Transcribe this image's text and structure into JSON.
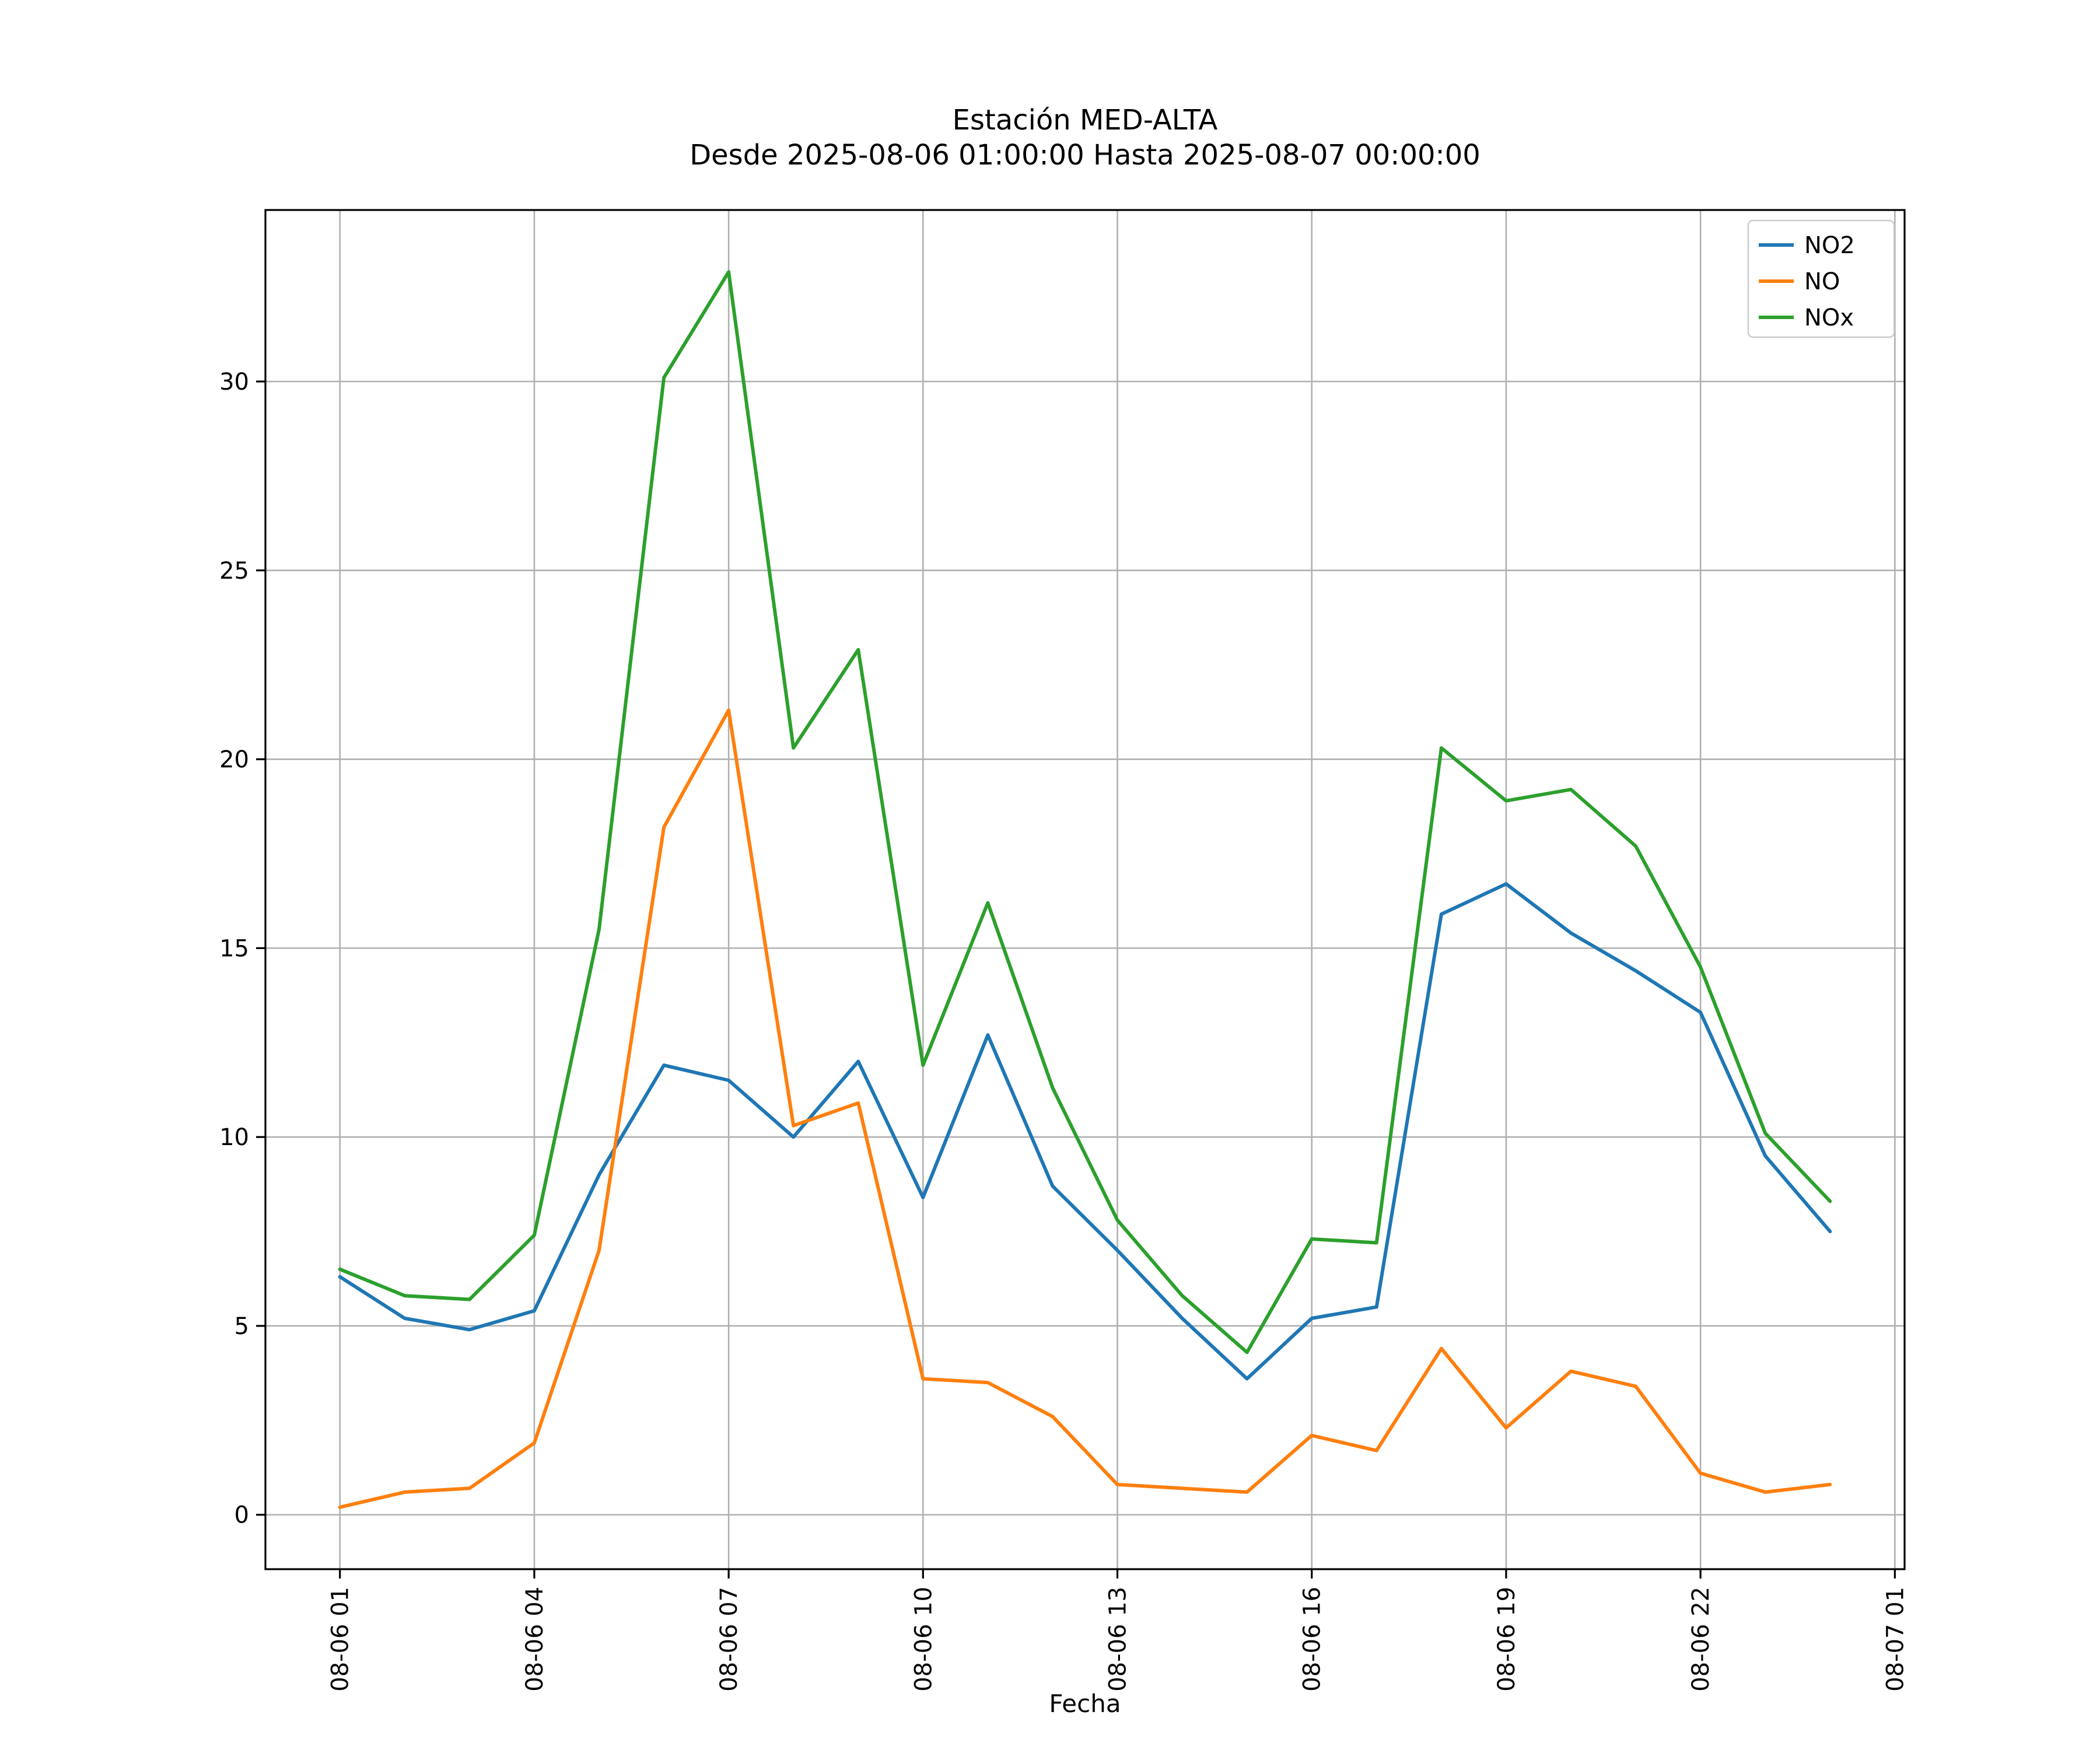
{
  "chart_data": {
    "type": "line",
    "title": "Estación MED-ALTA",
    "subtitle": "Desde 2025-08-06 01:00:00 Hasta 2025-08-07 00:00:00",
    "xlabel": "Fecha",
    "ylabel": "",
    "grid": true,
    "legend_position": "upper-right",
    "x": [
      1,
      2,
      3,
      4,
      5,
      6,
      7,
      8,
      9,
      10,
      11,
      12,
      13,
      14,
      15,
      16,
      17,
      18,
      19,
      20,
      21,
      22,
      23,
      24
    ],
    "series": [
      {
        "name": "NO2",
        "color": "#1f77b4",
        "values": [
          6.3,
          5.2,
          4.9,
          5.4,
          9.0,
          11.9,
          11.5,
          10.0,
          12.0,
          8.4,
          12.7,
          8.7,
          7.0,
          5.2,
          3.6,
          5.2,
          5.5,
          15.9,
          16.7,
          15.4,
          14.4,
          13.3,
          9.5,
          7.5
        ]
      },
      {
        "name": "NO",
        "color": "#ff7f0e",
        "values": [
          0.2,
          0.6,
          0.7,
          1.9,
          7.0,
          18.2,
          21.3,
          10.3,
          10.9,
          3.6,
          3.5,
          2.6,
          0.8,
          0.7,
          0.6,
          2.1,
          1.7,
          4.4,
          2.3,
          3.8,
          3.4,
          1.1,
          0.6,
          0.8
        ]
      },
      {
        "name": "NOx",
        "color": "#2ca02c",
        "values": [
          6.5,
          5.8,
          5.7,
          7.4,
          15.5,
          30.1,
          32.9,
          20.3,
          22.9,
          11.9,
          16.2,
          11.3,
          7.8,
          5.8,
          4.3,
          7.3,
          7.2,
          20.3,
          18.9,
          19.2,
          17.7,
          14.5,
          10.1,
          8.3
        ]
      }
    ],
    "x_ticks": [
      1,
      4,
      7,
      10,
      13,
      16,
      19,
      22,
      25
    ],
    "x_ticklabels": [
      "08-06 01",
      "08-06 04",
      "08-06 07",
      "08-06 10",
      "08-06 13",
      "08-06 16",
      "08-06 19",
      "08-06 22",
      "08-07 01"
    ],
    "y_ticks": [
      0,
      5,
      10,
      15,
      20,
      25,
      30
    ],
    "xlim": [
      -0.15,
      25.15
    ],
    "ylim": [
      -1.44,
      34.54
    ],
    "axis_color": "#000000",
    "grid_color": "#b0b0b0",
    "legend_border_color": "#cccccc",
    "background_color": "#ffffff"
  }
}
